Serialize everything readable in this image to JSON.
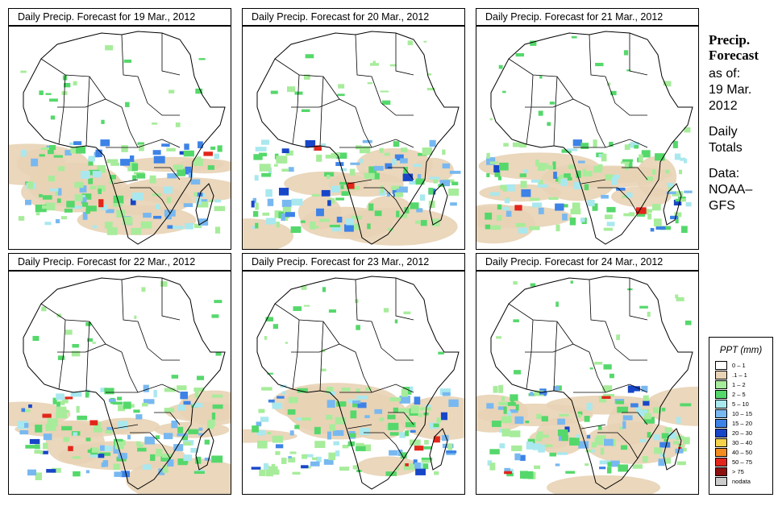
{
  "panels": [
    {
      "title": "Daily Precip. Forecast for  19 Mar., 2012"
    },
    {
      "title": "Daily Precip. Forecast for  20 Mar., 2012"
    },
    {
      "title": "Daily Precip. Forecast for  21 Mar., 2012"
    },
    {
      "title": "Daily Precip. Forecast for  22 Mar., 2012"
    },
    {
      "title": "Daily Precip. Forecast for  23 Mar., 2012"
    },
    {
      "title": "Daily Precip. Forecast for  24 Mar., 2012"
    }
  ],
  "sidebar": {
    "heading1": "Precip.",
    "heading2": "Forecast",
    "asof": "as of:",
    "date1": "19 Mar.",
    "date2": "2012",
    "daily1": "Daily",
    "daily2": "Totals",
    "data1": "Data:",
    "data2": "NOAA–",
    "data3": "GFS"
  },
  "legend": {
    "title": "PPT (mm)",
    "items": [
      {
        "label": "0 – 1",
        "color": "#ffffff"
      },
      {
        "label": ".1 – 1",
        "color": "#e8d3b5"
      },
      {
        "label": "1 – 2",
        "color": "#a7ec9b"
      },
      {
        "label": "2 – 5",
        "color": "#55d86b"
      },
      {
        "label": "5 – 10",
        "color": "#a9e8ee"
      },
      {
        "label": "10 – 15",
        "color": "#78b8f0"
      },
      {
        "label": "15 – 20",
        "color": "#3d82e6"
      },
      {
        "label": "20 – 30",
        "color": "#1846c8"
      },
      {
        "label": "30 – 40",
        "color": "#f6d34a"
      },
      {
        "label": "40 – 50",
        "color": "#f28c1e"
      },
      {
        "label": "50 – 75",
        "color": "#e3261b"
      },
      {
        "label": "> 75",
        "color": "#8c1010"
      },
      {
        "label": "nodata",
        "color": "#cccccc"
      }
    ]
  }
}
